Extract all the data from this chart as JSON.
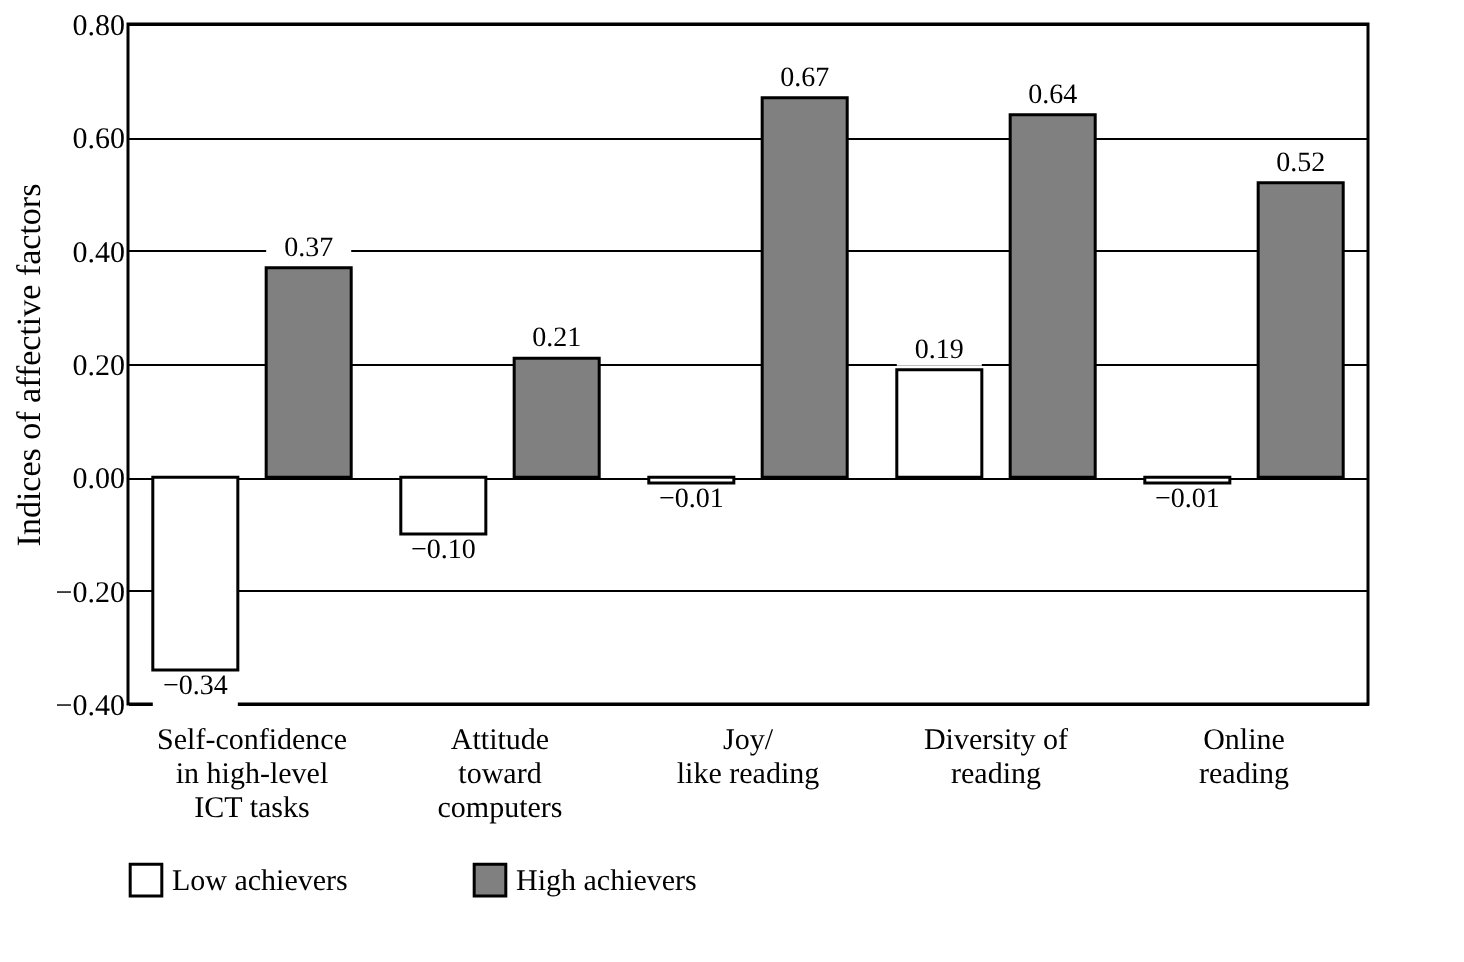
{
  "chart_data": {
    "type": "bar",
    "ylabel": "Indices of affective factors",
    "categories": [
      "Self-confidence\nin high-level\nICT tasks",
      "Attitude\ntoward\ncomputers",
      "Joy/\nlike reading",
      "Diversity of\nreading",
      "Online\nreading"
    ],
    "series": [
      {
        "name": "Low achievers",
        "color": "#ffffff",
        "values": [
          -0.34,
          -0.1,
          -0.01,
          0.19,
          -0.01
        ],
        "value_labels": [
          "−0.34",
          "−0.10",
          "−0.01",
          "0.19",
          "−0.01"
        ]
      },
      {
        "name": "High achievers",
        "color": "#808080",
        "values": [
          0.37,
          0.21,
          0.67,
          0.64,
          0.52
        ],
        "value_labels": [
          "0.37",
          "0.21",
          "0.67",
          "0.64",
          "0.52"
        ]
      }
    ],
    "ylim": [
      -0.4,
      0.8
    ],
    "yticks": [
      {
        "value": -0.4,
        "label": "−0.40"
      },
      {
        "value": -0.2,
        "label": "−0.20"
      },
      {
        "value": 0,
        "label": "0.00"
      },
      {
        "value": 0.2,
        "label": "0.20"
      },
      {
        "value": 0.4,
        "label": "0.40"
      },
      {
        "value": 0.6,
        "label": "0.60"
      },
      {
        "value": 0.8,
        "label": "0.80"
      }
    ],
    "grid": "y",
    "legend": "bottom"
  }
}
